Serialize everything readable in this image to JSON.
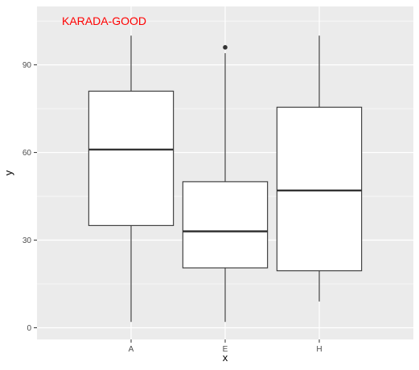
{
  "chart_data": {
    "type": "boxplot",
    "xlabel": "x",
    "ylabel": "y",
    "ylim": [
      -4,
      110
    ],
    "yticks": [
      0,
      30,
      60,
      90
    ],
    "grid": true,
    "annotation": {
      "text": "KARADA-GOOD",
      "color": "#ff0000"
    },
    "categories": [
      "A",
      "E",
      "H"
    ],
    "boxes": [
      {
        "category": "A",
        "min": 2,
        "q1": 35,
        "median": 61,
        "q3": 81,
        "max": 100,
        "outliers": []
      },
      {
        "category": "E",
        "min": 2,
        "q1": 20.5,
        "median": 33,
        "q3": 50,
        "max": 94,
        "outliers": [
          96
        ]
      },
      {
        "category": "H",
        "min": 9,
        "q1": 19.5,
        "median": 47,
        "q3": 75.5,
        "max": 100,
        "outliers": []
      }
    ],
    "colors": {
      "panel": "#ebebeb",
      "grid_major": "#ffffff",
      "box_fill": "#ffffff",
      "box_stroke": "#333333"
    }
  }
}
